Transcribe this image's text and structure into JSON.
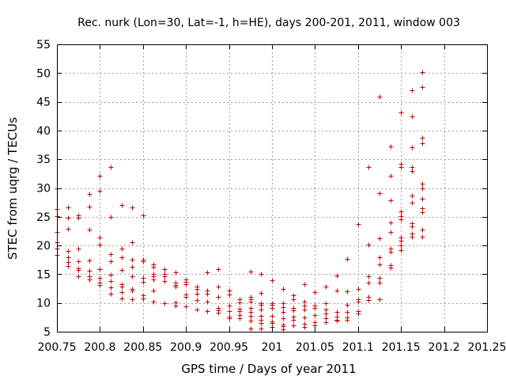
{
  "chart_data": {
    "type": "scatter",
    "title": "Rec. nurk (Lon=30, Lat=-1, h=HE), days 200-201, 2011, window 003",
    "xlabel": "GPS time / Days of year 2011",
    "ylabel": "STEC from uqrg / TECUs",
    "xlim": [
      200.75,
      201.25
    ],
    "ylim": [
      5,
      55
    ],
    "x_ticks": [
      200.75,
      200.8,
      200.85,
      200.9,
      200.95,
      201,
      201.05,
      201.1,
      201.15,
      201.2,
      201.25
    ],
    "x_tick_labels": [
      "200.75",
      "200.8",
      "200.85",
      "200.9",
      "200.95",
      "201",
      "201.05",
      "201.1",
      "201.15",
      "201.2",
      "201.25"
    ],
    "y_ticks": [
      5,
      10,
      15,
      20,
      25,
      30,
      35,
      40,
      45,
      50,
      55
    ],
    "y_tick_labels": [
      "5",
      "10",
      "15",
      "20",
      "25",
      "30",
      "35",
      "40",
      "45",
      "50",
      "55"
    ],
    "grid": true,
    "marker": "+",
    "color": "#cc0000",
    "points": [
      [
        200.75,
        29.9
      ],
      [
        200.75,
        26.4
      ],
      [
        200.75,
        25.1
      ],
      [
        200.75,
        22.3
      ],
      [
        200.75,
        20.6
      ],
      [
        200.75,
        19.4
      ],
      [
        200.75,
        18.4
      ],
      [
        200.7625,
        26.6
      ],
      [
        200.7625,
        24.8
      ],
      [
        200.7625,
        22.9
      ],
      [
        200.7625,
        19.0
      ],
      [
        200.7625,
        17.9
      ],
      [
        200.7625,
        17.1
      ],
      [
        200.7625,
        16.5
      ],
      [
        200.775,
        25.2
      ],
      [
        200.775,
        24.8
      ],
      [
        200.775,
        19.5
      ],
      [
        200.775,
        17.2
      ],
      [
        200.775,
        16.0
      ],
      [
        200.775,
        15.7
      ],
      [
        200.775,
        14.6
      ],
      [
        200.7875,
        28.9
      ],
      [
        200.7875,
        26.7
      ],
      [
        200.7875,
        22.7
      ],
      [
        200.7875,
        17.4
      ],
      [
        200.7875,
        15.6
      ],
      [
        200.7875,
        14.7
      ],
      [
        200.7875,
        14.1
      ],
      [
        200.8,
        32.1
      ],
      [
        200.8,
        29.5
      ],
      [
        200.8,
        21.4
      ],
      [
        200.8,
        20.1
      ],
      [
        200.8,
        15.9
      ],
      [
        200.8,
        14.4
      ],
      [
        200.8,
        13.5
      ],
      [
        200.8,
        13.1
      ],
      [
        200.8125,
        33.6
      ],
      [
        200.8125,
        25.0
      ],
      [
        200.8125,
        18.5
      ],
      [
        200.8125,
        17.2
      ],
      [
        200.8125,
        14.9
      ],
      [
        200.8125,
        13.8
      ],
      [
        200.8125,
        12.7
      ],
      [
        200.8125,
        11.6
      ],
      [
        200.825,
        27.0
      ],
      [
        200.825,
        19.5
      ],
      [
        200.825,
        18.0
      ],
      [
        200.825,
        15.8
      ],
      [
        200.825,
        13.2
      ],
      [
        200.825,
        12.8
      ],
      [
        200.825,
        11.9
      ],
      [
        200.825,
        10.8
      ],
      [
        200.8375,
        26.6
      ],
      [
        200.8375,
        20.6
      ],
      [
        200.8375,
        17.6
      ],
      [
        200.8375,
        16.3
      ],
      [
        200.8375,
        14.7
      ],
      [
        200.8375,
        12.5
      ],
      [
        200.8375,
        12.2
      ],
      [
        200.8375,
        10.7
      ],
      [
        200.85,
        25.3
      ],
      [
        200.85,
        17.5
      ],
      [
        200.85,
        17.3
      ],
      [
        200.85,
        14.4
      ],
      [
        200.85,
        13.7
      ],
      [
        200.85,
        11.4
      ],
      [
        200.85,
        10.8
      ],
      [
        200.8625,
        16.7
      ],
      [
        200.8625,
        16.3
      ],
      [
        200.8625,
        15.1
      ],
      [
        200.8625,
        14.7
      ],
      [
        200.8625,
        14.1
      ],
      [
        200.8625,
        12.1
      ],
      [
        200.8625,
        10.2
      ],
      [
        200.875,
        15.9
      ],
      [
        200.875,
        15.0
      ],
      [
        200.875,
        14.6
      ],
      [
        200.875,
        13.8
      ],
      [
        200.875,
        9.9
      ],
      [
        200.8875,
        15.3
      ],
      [
        200.8875,
        13.5
      ],
      [
        200.8875,
        13.1
      ],
      [
        200.8875,
        12.8
      ],
      [
        200.8875,
        10.1
      ],
      [
        200.8875,
        9.6
      ],
      [
        200.9,
        14.1
      ],
      [
        200.9,
        13.7
      ],
      [
        200.9,
        13.3
      ],
      [
        200.9,
        11.5
      ],
      [
        200.9,
        11.0
      ],
      [
        200.9,
        9.4
      ],
      [
        200.9125,
        12.8
      ],
      [
        200.9125,
        12.5
      ],
      [
        200.9125,
        11.6
      ],
      [
        200.9125,
        10.5
      ],
      [
        200.9125,
        8.9
      ],
      [
        200.925,
        15.3
      ],
      [
        200.925,
        12.1
      ],
      [
        200.925,
        11.6
      ],
      [
        200.925,
        10.3
      ],
      [
        200.925,
        8.6
      ],
      [
        200.9375,
        15.9
      ],
      [
        200.9375,
        12.8
      ],
      [
        200.9375,
        11.1
      ],
      [
        200.9375,
        9.2
      ],
      [
        200.9375,
        8.7
      ],
      [
        200.9375,
        8.3
      ],
      [
        200.95,
        12.1
      ],
      [
        200.95,
        11.5
      ],
      [
        200.95,
        9.5
      ],
      [
        200.95,
        8.6
      ],
      [
        200.95,
        7.6
      ],
      [
        200.95,
        7.4
      ],
      [
        200.9625,
        10.6
      ],
      [
        200.9625,
        10.1
      ],
      [
        200.9625,
        9.0
      ],
      [
        200.9625,
        8.6
      ],
      [
        200.9625,
        7.9
      ],
      [
        200.9625,
        7.4
      ],
      [
        200.975,
        15.5
      ],
      [
        200.975,
        11.1
      ],
      [
        200.975,
        10.7
      ],
      [
        200.975,
        10.2
      ],
      [
        200.975,
        9.2
      ],
      [
        200.975,
        8.5
      ],
      [
        200.975,
        7.7
      ],
      [
        200.975,
        6.9
      ],
      [
        200.975,
        5.6
      ],
      [
        200.9875,
        15.0
      ],
      [
        200.9875,
        11.8
      ],
      [
        200.9875,
        9.9
      ],
      [
        200.9875,
        9.7
      ],
      [
        200.9875,
        8.8
      ],
      [
        200.9875,
        7.8
      ],
      [
        200.9875,
        7.0
      ],
      [
        200.9875,
        6.5
      ],
      [
        200.9875,
        5.5
      ],
      [
        201.0,
        13.9
      ],
      [
        201.0,
        10.0
      ],
      [
        201.0,
        9.7
      ],
      [
        201.0,
        9.1
      ],
      [
        201.0,
        7.7
      ],
      [
        201.0,
        6.8
      ],
      [
        201.0,
        6.5
      ],
      [
        201.0,
        5.8
      ],
      [
        201.0125,
        12.4
      ],
      [
        201.0125,
        9.9
      ],
      [
        201.0125,
        9.3
      ],
      [
        201.0125,
        8.4
      ],
      [
        201.0125,
        7.4
      ],
      [
        201.0125,
        6.3
      ],
      [
        201.0125,
        5.9
      ],
      [
        201.0125,
        5.4
      ],
      [
        201.025,
        11.3
      ],
      [
        201.025,
        10.7
      ],
      [
        201.025,
        9.1
      ],
      [
        201.025,
        8.7
      ],
      [
        201.025,
        7.6
      ],
      [
        201.025,
        7.0
      ],
      [
        201.025,
        6.1
      ],
      [
        201.0375,
        13.2
      ],
      [
        201.0375,
        10.2
      ],
      [
        201.0375,
        9.6
      ],
      [
        201.0375,
        8.8
      ],
      [
        201.0375,
        7.5
      ],
      [
        201.0375,
        6.4
      ],
      [
        201.0375,
        5.8
      ],
      [
        201.05,
        11.9
      ],
      [
        201.05,
        9.6
      ],
      [
        201.05,
        9.2
      ],
      [
        201.05,
        7.9
      ],
      [
        201.05,
        6.6
      ],
      [
        201.05,
        6.1
      ],
      [
        201.0625,
        12.9
      ],
      [
        201.0625,
        10.0
      ],
      [
        201.0625,
        8.8
      ],
      [
        201.0625,
        8.1
      ],
      [
        201.0625,
        7.4
      ],
      [
        201.0625,
        6.6
      ],
      [
        201.075,
        14.8
      ],
      [
        201.075,
        12.2
      ],
      [
        201.075,
        8.4
      ],
      [
        201.075,
        7.6
      ],
      [
        201.075,
        7.0
      ],
      [
        201.075,
        6.9
      ],
      [
        201.0875,
        17.7
      ],
      [
        201.0875,
        12.0
      ],
      [
        201.0875,
        9.7
      ],
      [
        201.0875,
        8.4
      ],
      [
        201.0875,
        7.5
      ],
      [
        201.0875,
        7.0
      ],
      [
        201.1,
        23.8
      ],
      [
        201.1,
        12.5
      ],
      [
        201.1,
        10.7
      ],
      [
        201.1,
        10.2
      ],
      [
        201.1,
        8.6
      ],
      [
        201.1,
        8.2
      ],
      [
        201.1125,
        33.6
      ],
      [
        201.1125,
        20.1
      ],
      [
        201.1125,
        14.7
      ],
      [
        201.1125,
        13.6
      ],
      [
        201.1125,
        11.0
      ],
      [
        201.1125,
        10.5
      ],
      [
        201.125,
        45.9
      ],
      [
        201.125,
        29.1
      ],
      [
        201.125,
        21.2
      ],
      [
        201.125,
        18.0
      ],
      [
        201.125,
        16.7
      ],
      [
        201.125,
        14.4
      ],
      [
        201.125,
        13.5
      ],
      [
        201.125,
        10.6
      ],
      [
        201.1375,
        37.2
      ],
      [
        201.1375,
        32.2
      ],
      [
        201.1375,
        27.9
      ],
      [
        201.1375,
        24.0
      ],
      [
        201.1375,
        22.4
      ],
      [
        201.1375,
        19.5
      ],
      [
        201.1375,
        18.9
      ],
      [
        201.1375,
        16.6
      ],
      [
        201.1375,
        16.2
      ],
      [
        201.15,
        43.2
      ],
      [
        201.15,
        34.2
      ],
      [
        201.15,
        33.7
      ],
      [
        201.15,
        26.0
      ],
      [
        201.15,
        25.1
      ],
      [
        201.15,
        24.5
      ],
      [
        201.15,
        21.4
      ],
      [
        201.15,
        20.8
      ],
      [
        201.15,
        20.0
      ],
      [
        201.15,
        19.2
      ],
      [
        201.1625,
        47.0
      ],
      [
        201.1625,
        42.5
      ],
      [
        201.1625,
        37.1
      ],
      [
        201.1625,
        33.6
      ],
      [
        201.1625,
        33.0
      ],
      [
        201.1625,
        28.7
      ],
      [
        201.1625,
        27.5
      ],
      [
        201.1625,
        23.9
      ],
      [
        201.1625,
        23.3
      ],
      [
        201.1625,
        22.1
      ],
      [
        201.1625,
        21.5
      ],
      [
        201.175,
        50.2
      ],
      [
        201.175,
        47.6
      ],
      [
        201.175,
        38.7
      ],
      [
        201.175,
        37.8
      ],
      [
        201.175,
        30.8
      ],
      [
        201.175,
        30.0
      ],
      [
        201.175,
        28.2
      ],
      [
        201.175,
        26.5
      ],
      [
        201.175,
        25.8
      ],
      [
        201.175,
        22.8
      ],
      [
        201.175,
        21.5
      ]
    ]
  }
}
